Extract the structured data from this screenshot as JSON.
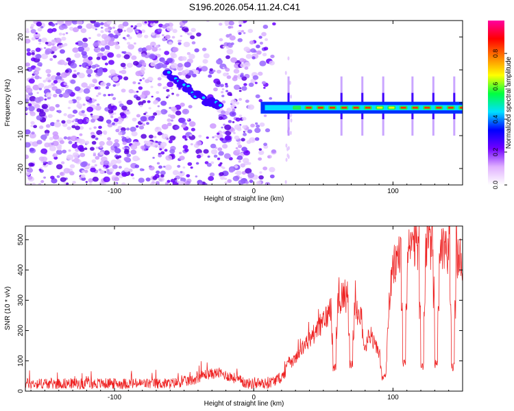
{
  "title": "S196.2026.054.11.24.C41",
  "chart_data": [
    {
      "type": "heatmap",
      "xlabel": "Height of straight line (km)",
      "ylabel": "Frequency (Hz)",
      "xlim": [
        -164,
        150
      ],
      "ylim": [
        -25,
        25
      ],
      "xticks": [
        -100,
        0,
        100
      ],
      "yticks": [
        -20,
        -10,
        0,
        10,
        20
      ],
      "colorbar": {
        "label": "Normalized spectral amplitude",
        "range": [
          0,
          1
        ],
        "ticks": [
          "0.0",
          "0.2",
          "0.4",
          "0.6",
          "0.8"
        ],
        "tick_values": [
          0,
          0.2,
          0.4,
          0.6,
          0.8
        ],
        "stops": [
          "#ffffff",
          "#e0b0ff",
          "#7000ff",
          "#0000ff",
          "#00e0ff",
          "#00ff40",
          "#ffff00",
          "#ff8000",
          "#ff0000",
          "#ff00a0"
        ]
      },
      "features": {
        "noise_region": [
          -164,
          15
        ],
        "diagonal_track": [
          [
            -63,
            9.5
          ],
          [
            -53,
            6
          ],
          [
            -43,
            3
          ],
          [
            -33,
            0.5
          ],
          [
            -23,
            -1
          ]
        ],
        "steady_tone_hz": -1.5,
        "steady_tone_range": [
          5,
          150
        ],
        "harmonic_spikes_km": [
          25,
          63,
          78,
          93,
          114,
          129,
          144
        ]
      }
    },
    {
      "type": "line",
      "xlabel": "Height of straight line (km)",
      "ylabel": "SNR (10 * v/v)",
      "xlim": [
        -164,
        150
      ],
      "ylim": [
        0,
        545
      ],
      "xticks": [
        -100,
        0,
        100
      ],
      "yticks": [
        0,
        100,
        200,
        300,
        400,
        500
      ],
      "series": [
        {
          "name": "SNR",
          "color": "#ee2222",
          "envelope_x": [
            -164,
            -60,
            -45,
            -35,
            -25,
            -15,
            -5,
            10,
            20,
            30,
            40,
            50,
            60,
            65,
            70,
            75,
            80,
            85,
            90,
            95,
            97,
            100,
            105,
            110,
            120,
            130,
            140,
            145,
            150
          ],
          "envelope_y": [
            25,
            25,
            35,
            55,
            60,
            45,
            25,
            25,
            45,
            110,
            170,
            230,
            300,
            320,
            300,
            250,
            220,
            170,
            130,
            60,
            280,
            400,
            460,
            470,
            480,
            480,
            470,
            450,
            420
          ],
          "dips_x": [
            25,
            58,
            70,
            80,
            93,
            108,
            121,
            131,
            143
          ],
          "dips_y": [
            100,
            80,
            90,
            140,
            40,
            90,
            80,
            90,
            80
          ]
        }
      ]
    }
  ]
}
